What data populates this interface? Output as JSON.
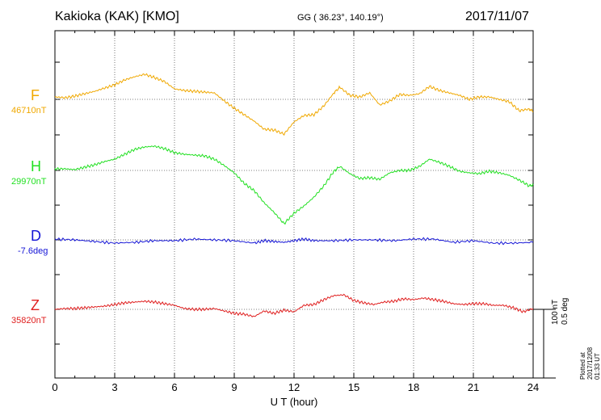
{
  "header": {
    "station": "Kakioka (KAK)  [KMO]",
    "coords": "GG ( 36.23°, 140.19°)",
    "date": "2017/11/07"
  },
  "chart_data": {
    "type": "line",
    "xlabel": "U T (hour)",
    "xlim": [
      0,
      24
    ],
    "xticks": [
      "0",
      "3",
      "6",
      "9",
      "12",
      "15",
      "18",
      "21",
      "24"
    ],
    "grid": true,
    "scale_note": [
      "100 nT",
      "0.5 deg"
    ],
    "series": [
      {
        "name": "F",
        "baseline_label": "46710nT",
        "color": "#f0a800",
        "x": [
          0,
          0.5,
          1,
          1.5,
          2,
          2.5,
          3,
          3.5,
          4,
          4.5,
          5,
          5.5,
          6,
          6.5,
          7,
          7.5,
          8,
          8.5,
          9,
          9.5,
          10,
          10.5,
          11,
          11.5,
          12,
          12.5,
          13,
          13.5,
          14,
          14.3,
          14.8,
          15.3,
          15.8,
          16.3,
          16.8,
          17.3,
          17.8,
          18.3,
          18.8,
          19.3,
          19.8,
          20.3,
          20.8,
          21.3,
          21.8,
          22.3,
          22.8,
          23.3,
          23.8,
          24
        ],
        "y": [
          3,
          2,
          4,
          7,
          10,
          14,
          18,
          24,
          28,
          31,
          27,
          22,
          13,
          11,
          10,
          9,
          8,
          -2,
          -11,
          -19,
          -27,
          -37,
          -38,
          -43,
          -28,
          -20,
          -19,
          -8,
          8,
          15,
          5,
          3,
          8,
          -7,
          -2,
          6,
          5,
          7,
          16,
          11,
          8,
          5,
          0,
          3,
          3,
          0,
          -3,
          -14,
          -12,
          -15
        ]
      },
      {
        "name": "H",
        "baseline_label": "29970nT",
        "color": "#22e022",
        "x": [
          0,
          0.5,
          1,
          1.5,
          2,
          2.5,
          3,
          3.5,
          4,
          4.5,
          5,
          5.5,
          6,
          6.5,
          7,
          7.5,
          8,
          8.5,
          9,
          9.5,
          10,
          10.5,
          11,
          11.5,
          12,
          12.5,
          13,
          13.5,
          14,
          14.3,
          14.8,
          15.3,
          15.8,
          16.3,
          16.8,
          17.3,
          17.8,
          18.3,
          18.8,
          19.3,
          19.8,
          20.3,
          20.8,
          21.3,
          21.8,
          22.3,
          22.8,
          23.3,
          23.8,
          24
        ],
        "y": [
          2,
          2,
          1,
          4,
          7,
          11,
          14,
          20,
          26,
          29,
          30,
          27,
          22,
          20,
          19,
          18,
          14,
          6,
          -3,
          -16,
          -25,
          -40,
          -52,
          -66,
          -53,
          -44,
          -33,
          -19,
          -1,
          5,
          -4,
          -10,
          -9,
          -11,
          -3,
          0,
          0,
          5,
          14,
          10,
          5,
          -1,
          -3,
          -4,
          -1,
          -3,
          -6,
          -12,
          -19,
          -18
        ]
      },
      {
        "name": "D",
        "baseline_label": "-7.6deg",
        "color": "#1414d6",
        "x": [
          0,
          1,
          2,
          3,
          4,
          5,
          6,
          7,
          8,
          9,
          10,
          10.5,
          11,
          11.5,
          12,
          12.5,
          13,
          14,
          15,
          16,
          17,
          18,
          19,
          20,
          21,
          22,
          23,
          24
        ],
        "y": [
          1,
          0,
          -2,
          -4,
          -3,
          -1,
          -1,
          1,
          0,
          -1,
          -4,
          -1,
          -2,
          -3,
          -1,
          1,
          -1,
          -1,
          0,
          0,
          -1,
          1,
          1,
          -3,
          -1,
          -4,
          -4,
          -3
        ]
      },
      {
        "name": "Z",
        "baseline_label": "35820nT",
        "color": "#e02020",
        "x": [
          0,
          0.5,
          1,
          1.5,
          2,
          2.5,
          3,
          3.5,
          4,
          4.5,
          5,
          5.5,
          6,
          6.5,
          7,
          7.5,
          8,
          8.5,
          9,
          9.5,
          10,
          10.5,
          11,
          11.5,
          12,
          12.5,
          13,
          13.5,
          14,
          14.5,
          15,
          15.5,
          16,
          16.5,
          17,
          17.5,
          18,
          18.5,
          19,
          19.5,
          20,
          20.5,
          21,
          21.5,
          22,
          22.5,
          23,
          23.5,
          24
        ],
        "y": [
          0,
          1,
          1,
          2,
          3,
          4,
          6,
          8,
          9,
          10,
          9,
          7,
          5,
          1,
          0,
          0,
          1,
          -2,
          -5,
          -6,
          -9,
          -2,
          -5,
          -1,
          -3,
          5,
          6,
          12,
          17,
          18,
          11,
          8,
          6,
          9,
          10,
          13,
          12,
          14,
          12,
          10,
          7,
          6,
          7,
          7,
          5,
          5,
          2,
          -3,
          1
        ]
      }
    ]
  },
  "footer": {
    "plotted": "Plotted at 2017/12/08 01:33 UT"
  }
}
